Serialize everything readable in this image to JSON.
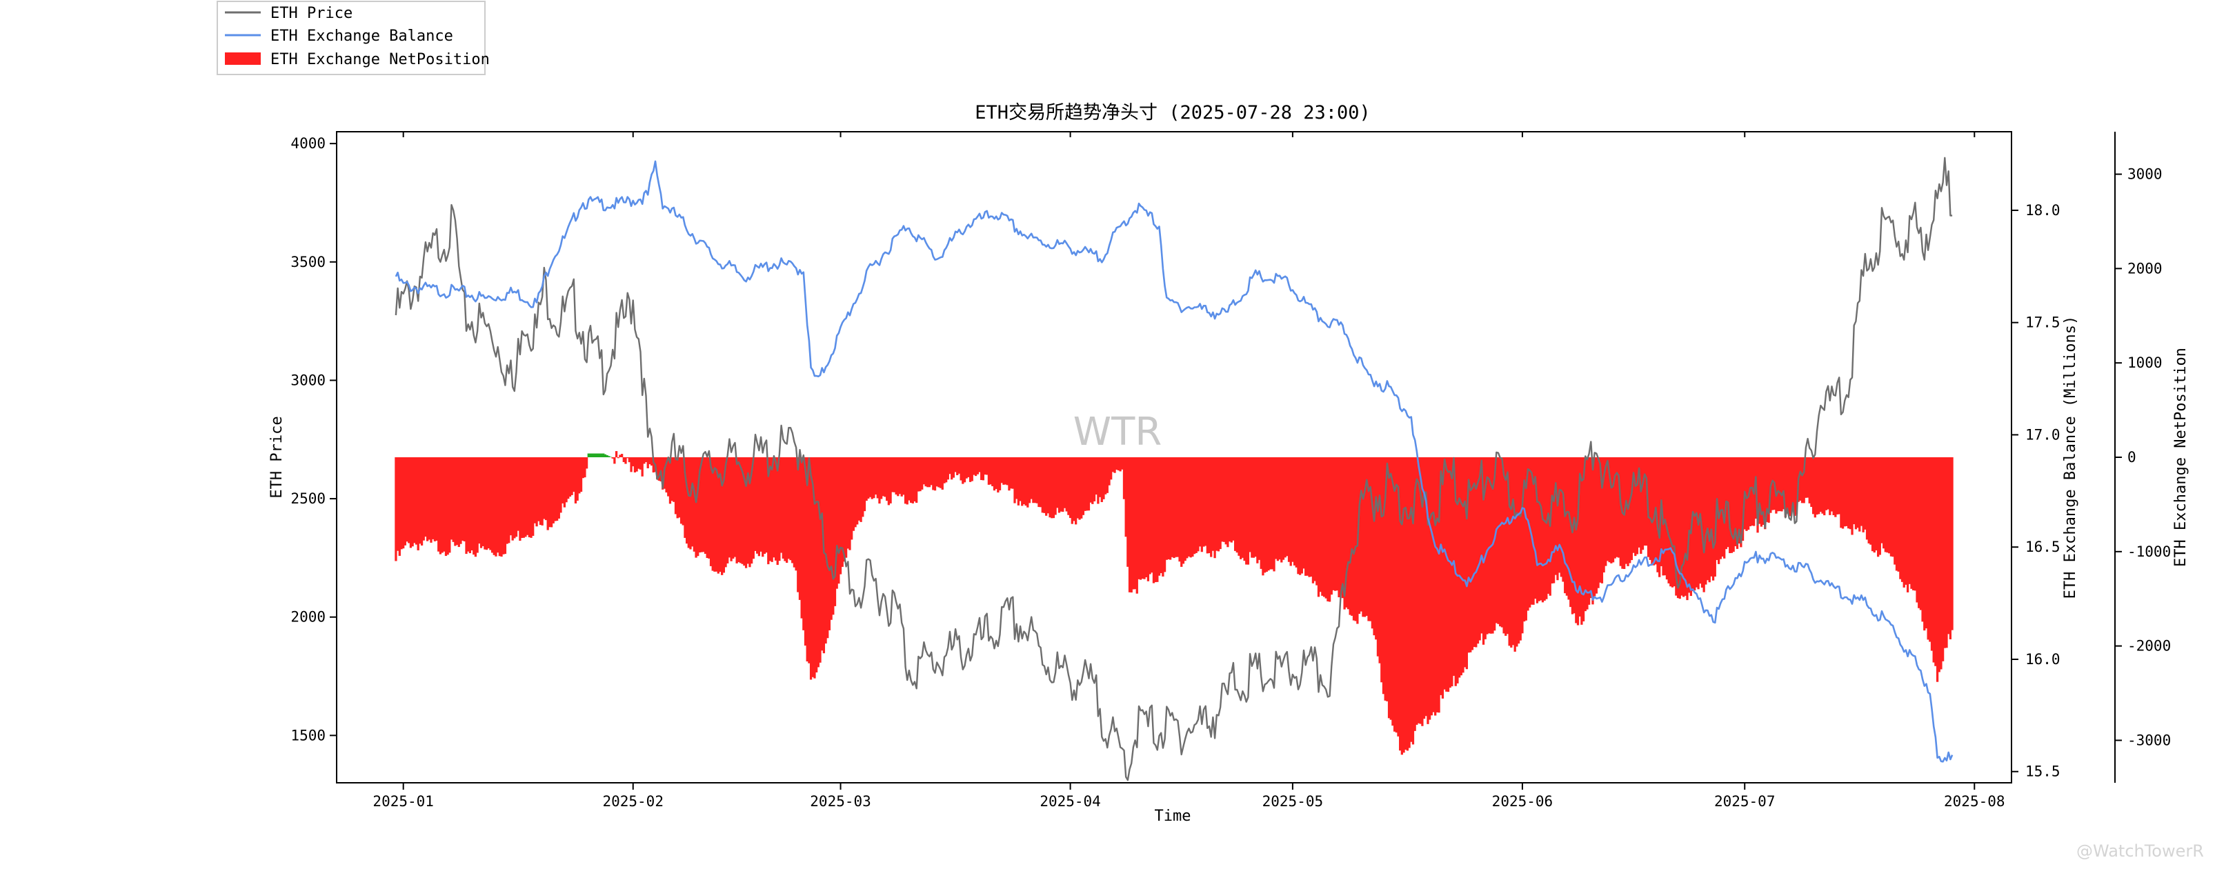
{
  "chart_data": {
    "type": "line",
    "title": "ETH交易所趋势净头寸 (2025-07-28 23:00)",
    "xlabel": "Time",
    "ylabel_left": "ETH Price",
    "ylabel_right": "ETH Exchange Balance (Millions)",
    "ylabel_right2": "ETH Exchange NetPosition",
    "x_ticks": [
      "2025-01",
      "2025-02",
      "2025-03",
      "2025-04",
      "2025-05",
      "2025-06",
      "2025-07",
      "2025-08"
    ],
    "y_left_ticks": [
      "1500",
      "2000",
      "2500",
      "3000",
      "3500",
      "4000"
    ],
    "y_right_ticks": [
      "15.5",
      "16.0",
      "16.5",
      "17.0",
      "17.5",
      "18.0"
    ],
    "y_right2_ticks": [
      "-3000",
      "-2000",
      "-1000",
      "0",
      "1000",
      "2000",
      "3000"
    ],
    "x_range": [
      "2024-12-23",
      "2025-08-06"
    ],
    "ylim_left": [
      1300,
      4050
    ],
    "ylim_right": [
      15.45,
      18.35
    ],
    "ylim_right2": [
      -3450,
      3450
    ],
    "legend_position": "top-left outside",
    "watermark": "WTR",
    "footer_mark": "@WatchTowerR",
    "series": [
      {
        "name": "ETH Price",
        "axis": "left",
        "color": "#6e6e6e",
        "points": [
          [
            "2024-12-31",
            3330
          ],
          [
            "2025-01-03",
            3480
          ],
          [
            "2025-01-06",
            3650
          ],
          [
            "2025-01-08",
            3700
          ],
          [
            "2025-01-09",
            3330
          ],
          [
            "2025-01-12",
            3280
          ],
          [
            "2025-01-14",
            3200
          ],
          [
            "2025-01-16",
            3000
          ],
          [
            "2025-01-17",
            3330
          ],
          [
            "2025-01-19",
            3260
          ],
          [
            "2025-01-20",
            3450
          ],
          [
            "2025-01-22",
            3300
          ],
          [
            "2025-01-24",
            3380
          ],
          [
            "2025-01-26",
            3200
          ],
          [
            "2025-01-28",
            3100
          ],
          [
            "2025-01-30",
            3250
          ],
          [
            "2025-02-01",
            3400
          ],
          [
            "2025-02-02",
            3200
          ],
          [
            "2025-02-03",
            2800
          ],
          [
            "2025-02-04",
            2650
          ],
          [
            "2025-02-06",
            2750
          ],
          [
            "2025-02-09",
            2630
          ],
          [
            "2025-02-12",
            2700
          ],
          [
            "2025-02-16",
            2700
          ],
          [
            "2025-02-20",
            2750
          ],
          [
            "2025-02-24",
            2780
          ],
          [
            "2025-02-25",
            2600
          ],
          [
            "2025-02-26",
            2450
          ],
          [
            "2025-02-27",
            2350
          ],
          [
            "2025-02-28",
            2300
          ],
          [
            "2025-03-02",
            2250
          ],
          [
            "2025-03-03",
            2150
          ],
          [
            "2025-03-05",
            2200
          ],
          [
            "2025-03-07",
            2150
          ],
          [
            "2025-03-09",
            2050
          ],
          [
            "2025-03-10",
            1850
          ],
          [
            "2025-03-12",
            1850
          ],
          [
            "2025-03-16",
            1900
          ],
          [
            "2025-03-20",
            1950
          ],
          [
            "2025-03-24",
            2050
          ],
          [
            "2025-03-26",
            2000
          ],
          [
            "2025-03-28",
            1900
          ],
          [
            "2025-03-31",
            1800
          ],
          [
            "2025-04-02",
            1800
          ],
          [
            "2025-04-04",
            1750
          ],
          [
            "2025-04-06",
            1600
          ],
          [
            "2025-04-07",
            1500
          ],
          [
            "2025-04-09",
            1450
          ],
          [
            "2025-04-10",
            1600
          ],
          [
            "2025-04-13",
            1580
          ],
          [
            "2025-04-16",
            1580
          ],
          [
            "2025-04-19",
            1600
          ],
          [
            "2025-04-22",
            1700
          ],
          [
            "2025-04-23",
            1780
          ],
          [
            "2025-04-26",
            1800
          ],
          [
            "2025-04-30",
            1820
          ],
          [
            "2025-05-03",
            1830
          ],
          [
            "2025-05-06",
            1800
          ],
          [
            "2025-05-07",
            1900
          ],
          [
            "2025-05-08",
            2200
          ],
          [
            "2025-05-09",
            2400
          ],
          [
            "2025-05-11",
            2550
          ],
          [
            "2025-05-14",
            2600
          ],
          [
            "2025-05-16",
            2550
          ],
          [
            "2025-05-20",
            2500
          ],
          [
            "2025-05-22",
            2650
          ],
          [
            "2025-05-25",
            2550
          ],
          [
            "2025-05-28",
            2680
          ],
          [
            "2025-05-31",
            2550
          ],
          [
            "2025-06-03",
            2600
          ],
          [
            "2025-06-06",
            2500
          ],
          [
            "2025-06-08",
            2500
          ],
          [
            "2025-06-10",
            2700
          ],
          [
            "2025-06-11",
            2800
          ],
          [
            "2025-06-13",
            2550
          ],
          [
            "2025-06-16",
            2600
          ],
          [
            "2025-06-19",
            2520
          ],
          [
            "2025-06-22",
            2250
          ],
          [
            "2025-06-24",
            2400
          ],
          [
            "2025-06-27",
            2450
          ],
          [
            "2025-06-30",
            2450
          ],
          [
            "2025-07-02",
            2550
          ],
          [
            "2025-07-05",
            2530
          ],
          [
            "2025-07-08",
            2550
          ],
          [
            "2025-07-10",
            2750
          ],
          [
            "2025-07-11",
            2950
          ],
          [
            "2025-07-13",
            2970
          ],
          [
            "2025-07-15",
            3050
          ],
          [
            "2025-07-16",
            3300
          ],
          [
            "2025-07-17",
            3450
          ],
          [
            "2025-07-18",
            3600
          ],
          [
            "2025-07-20",
            3700
          ],
          [
            "2025-07-22",
            3650
          ],
          [
            "2025-07-24",
            3700
          ],
          [
            "2025-07-25",
            3650
          ],
          [
            "2025-07-27",
            3800
          ],
          [
            "2025-07-28",
            3900
          ],
          [
            "2025-07-29",
            3790
          ]
        ]
      },
      {
        "name": "ETH Exchange Balance",
        "axis": "right",
        "color": "#5b8fe8",
        "points": [
          [
            "2024-12-31",
            17.72
          ],
          [
            "2025-01-01",
            17.68
          ],
          [
            "2025-01-05",
            17.66
          ],
          [
            "2025-01-09",
            17.65
          ],
          [
            "2025-01-12",
            17.62
          ],
          [
            "2025-01-16",
            17.65
          ],
          [
            "2025-01-19",
            17.6
          ],
          [
            "2025-01-21",
            17.8
          ],
          [
            "2025-01-23",
            17.9
          ],
          [
            "2025-01-25",
            18.05
          ],
          [
            "2025-01-30",
            18.04
          ],
          [
            "2025-02-03",
            18.08
          ],
          [
            "2025-02-04",
            18.22
          ],
          [
            "2025-02-05",
            18.05
          ],
          [
            "2025-02-08",
            17.95
          ],
          [
            "2025-02-12",
            17.8
          ],
          [
            "2025-02-16",
            17.72
          ],
          [
            "2025-02-20",
            17.78
          ],
          [
            "2025-02-24",
            17.75
          ],
          [
            "2025-02-25",
            17.3
          ],
          [
            "2025-02-26",
            17.25
          ],
          [
            "2025-02-28",
            17.4
          ],
          [
            "2025-03-02",
            17.55
          ],
          [
            "2025-03-05",
            17.75
          ],
          [
            "2025-03-10",
            17.95
          ],
          [
            "2025-03-14",
            17.8
          ],
          [
            "2025-03-18",
            17.95
          ],
          [
            "2025-03-22",
            18.0
          ],
          [
            "2025-03-27",
            17.88
          ],
          [
            "2025-04-01",
            17.85
          ],
          [
            "2025-04-05",
            17.8
          ],
          [
            "2025-04-08",
            17.95
          ],
          [
            "2025-04-10",
            18.03
          ],
          [
            "2025-04-13",
            17.95
          ],
          [
            "2025-04-14",
            17.6
          ],
          [
            "2025-04-18",
            17.58
          ],
          [
            "2025-04-22",
            17.55
          ],
          [
            "2025-04-26",
            17.72
          ],
          [
            "2025-04-30",
            17.7
          ],
          [
            "2025-05-04",
            17.55
          ],
          [
            "2025-05-08",
            17.48
          ],
          [
            "2025-05-11",
            17.28
          ],
          [
            "2025-05-14",
            17.22
          ],
          [
            "2025-05-17",
            17.1
          ],
          [
            "2025-05-18",
            16.85
          ],
          [
            "2025-05-20",
            16.55
          ],
          [
            "2025-05-22",
            16.45
          ],
          [
            "2025-05-25",
            16.35
          ],
          [
            "2025-05-28",
            16.55
          ],
          [
            "2025-06-01",
            16.7
          ],
          [
            "2025-06-03",
            16.45
          ],
          [
            "2025-06-06",
            16.5
          ],
          [
            "2025-06-09",
            16.3
          ],
          [
            "2025-06-12",
            16.3
          ],
          [
            "2025-06-15",
            16.4
          ],
          [
            "2025-06-18",
            16.45
          ],
          [
            "2025-06-21",
            16.5
          ],
          [
            "2025-06-24",
            16.3
          ],
          [
            "2025-06-27",
            16.2
          ],
          [
            "2025-06-30",
            16.4
          ],
          [
            "2025-07-03",
            16.48
          ],
          [
            "2025-07-06",
            16.45
          ],
          [
            "2025-07-09",
            16.42
          ],
          [
            "2025-07-12",
            16.35
          ],
          [
            "2025-07-15",
            16.3
          ],
          [
            "2025-07-18",
            16.25
          ],
          [
            "2025-07-21",
            16.15
          ],
          [
            "2025-07-24",
            16.0
          ],
          [
            "2025-07-26",
            15.88
          ],
          [
            "2025-07-27",
            15.57
          ],
          [
            "2025-07-28",
            15.55
          ],
          [
            "2025-07-29",
            15.6
          ]
        ]
      },
      {
        "name": "ETH Exchange NetPosition",
        "axis": "right2",
        "type": "bar",
        "color": "#ff2020",
        "positive_color": "#22aa22",
        "points": [
          [
            "2024-12-31",
            -1100
          ],
          [
            "2025-01-02",
            -900
          ],
          [
            "2025-01-06",
            -950
          ],
          [
            "2025-01-10",
            -980
          ],
          [
            "2025-01-14",
            -1000
          ],
          [
            "2025-01-17",
            -800
          ],
          [
            "2025-01-20",
            -720
          ],
          [
            "2025-01-22",
            -600
          ],
          [
            "2025-01-24",
            -450
          ],
          [
            "2025-01-25",
            -300
          ],
          [
            "2025-01-26",
            40
          ],
          [
            "2025-01-28",
            40
          ],
          [
            "2025-01-31",
            -70
          ],
          [
            "2025-02-03",
            -130
          ],
          [
            "2025-02-05",
            -260
          ],
          [
            "2025-02-08",
            -850
          ],
          [
            "2025-02-12",
            -1200
          ],
          [
            "2025-02-16",
            -1100
          ],
          [
            "2025-02-20",
            -1050
          ],
          [
            "2025-02-23",
            -1200
          ],
          [
            "2025-02-25",
            -2400
          ],
          [
            "2025-02-26",
            -2300
          ],
          [
            "2025-02-28",
            -1600
          ],
          [
            "2025-03-03",
            -700
          ],
          [
            "2025-03-06",
            -400
          ],
          [
            "2025-03-10",
            -450
          ],
          [
            "2025-03-14",
            -300
          ],
          [
            "2025-03-18",
            -200
          ],
          [
            "2025-03-22",
            -300
          ],
          [
            "2025-03-26",
            -500
          ],
          [
            "2025-03-30",
            -600
          ],
          [
            "2025-04-03",
            -650
          ],
          [
            "2025-04-06",
            -300
          ],
          [
            "2025-04-08",
            -150
          ],
          [
            "2025-04-09",
            -1400
          ],
          [
            "2025-04-12",
            -1300
          ],
          [
            "2025-04-15",
            -1100
          ],
          [
            "2025-04-19",
            -1000
          ],
          [
            "2025-04-23",
            -950
          ],
          [
            "2025-04-27",
            -1200
          ],
          [
            "2025-05-01",
            -1100
          ],
          [
            "2025-05-04",
            -1400
          ],
          [
            "2025-05-07",
            -1500
          ],
          [
            "2025-05-10",
            -1700
          ],
          [
            "2025-05-12",
            -1800
          ],
          [
            "2025-05-14",
            -2800
          ],
          [
            "2025-05-16",
            -3100
          ],
          [
            "2025-05-19",
            -2800
          ],
          [
            "2025-05-22",
            -2500
          ],
          [
            "2025-05-25",
            -2100
          ],
          [
            "2025-05-28",
            -1800
          ],
          [
            "2025-05-31",
            -2000
          ],
          [
            "2025-06-03",
            -1500
          ],
          [
            "2025-06-06",
            -1300
          ],
          [
            "2025-06-09",
            -1800
          ],
          [
            "2025-06-12",
            -1200
          ],
          [
            "2025-06-15",
            -1100
          ],
          [
            "2025-06-18",
            -1000
          ],
          [
            "2025-06-21",
            -1400
          ],
          [
            "2025-06-24",
            -1500
          ],
          [
            "2025-06-27",
            -1200
          ],
          [
            "2025-06-30",
            -900
          ],
          [
            "2025-07-03",
            -700
          ],
          [
            "2025-07-06",
            -600
          ],
          [
            "2025-07-09",
            -500
          ],
          [
            "2025-07-12",
            -600
          ],
          [
            "2025-07-15",
            -700
          ],
          [
            "2025-07-18",
            -900
          ],
          [
            "2025-07-21",
            -1100
          ],
          [
            "2025-07-24",
            -1500
          ],
          [
            "2025-07-26",
            -1900
          ],
          [
            "2025-07-27",
            -2400
          ],
          [
            "2025-07-28",
            -2100
          ],
          [
            "2025-07-29",
            -1800
          ]
        ]
      }
    ]
  }
}
